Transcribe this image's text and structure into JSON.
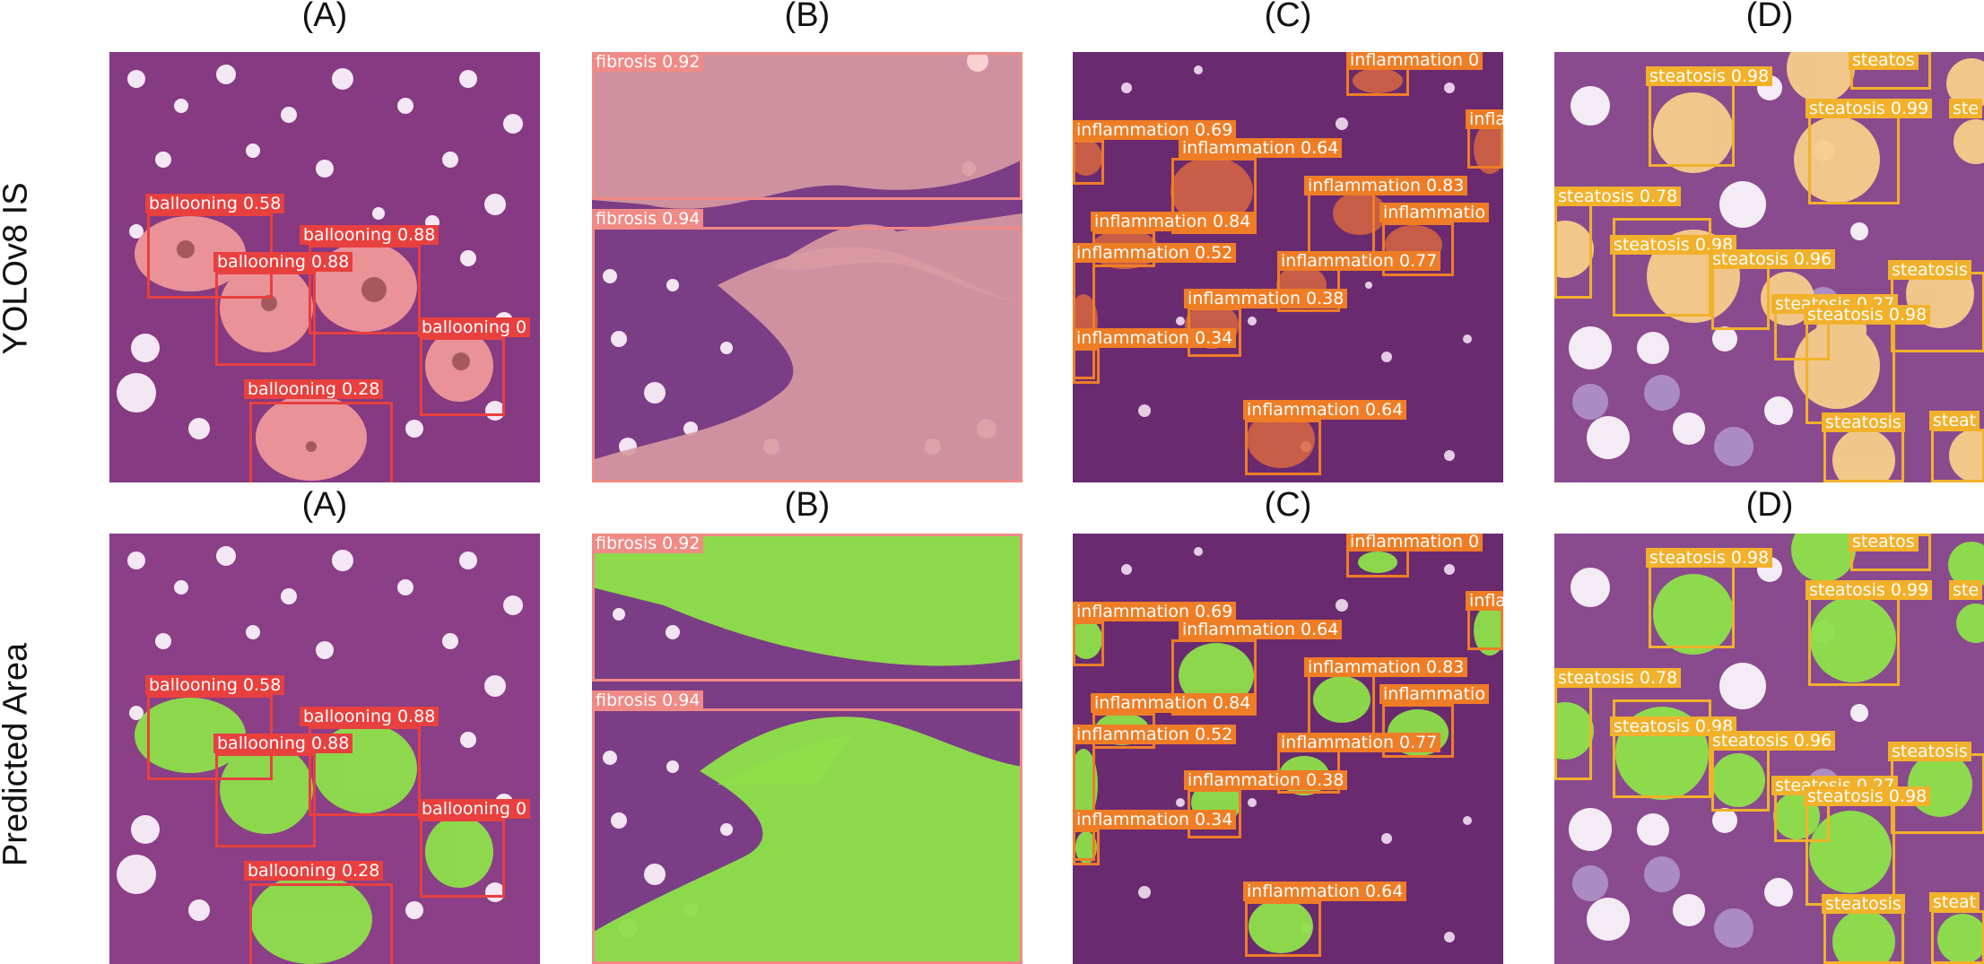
{
  "colors": {
    "tissue": "#8a3f86",
    "tissue_dark": "#5e2563",
    "tissue_fibrosis": "#c98f96",
    "ballooning": "#e8403f",
    "fibrosis": "#f08a86",
    "inflammation": "#ef7d26",
    "steatosis": "#f2b12b",
    "predicted_fill": "#8ee04a"
  },
  "column_titles": [
    {
      "key": "A",
      "label": "(A)"
    },
    {
      "key": "B",
      "label": "(B)"
    },
    {
      "key": "C",
      "label": "(C)"
    },
    {
      "key": "D",
      "label": "(D)"
    }
  ],
  "row_titles": [
    {
      "key": "top",
      "label": "YOLOv8 IS"
    },
    {
      "key": "bottom",
      "label": "Predicted Area"
    }
  ],
  "panels": {
    "A": {
      "detections": [
        {
          "label": "ballooning 0.58"
        },
        {
          "label": "ballooning 0.88"
        },
        {
          "label": "ballooning 0.88"
        },
        {
          "label": "ballooning 0"
        },
        {
          "label": "ballooning 0.28"
        }
      ]
    },
    "B": {
      "detections": [
        {
          "label": "fibrosis 0.92"
        },
        {
          "label": "fibrosis 0.94"
        }
      ]
    },
    "C": {
      "detections": [
        {
          "label": "inflammation 0"
        },
        {
          "label": "infla"
        },
        {
          "label": "inflammation 0.69"
        },
        {
          "label": "inflammation 0.64"
        },
        {
          "label": "inflammation 0.83"
        },
        {
          "label": "inflammation 0.84"
        },
        {
          "label": "inflammatio"
        },
        {
          "label": "inflammation 0.52"
        },
        {
          "label": "inflammation 0.77"
        },
        {
          "label": "inflammation 0.38"
        },
        {
          "label": "inflammation 0.34"
        },
        {
          "label": "inflammation 0.64"
        }
      ]
    },
    "D": {
      "detections": [
        {
          "label": "steatos"
        },
        {
          "label": "steatosis 0.98"
        },
        {
          "label": "steatosis 0.99"
        },
        {
          "label": "ste"
        },
        {
          "label": "steatosis 0.78"
        },
        {
          "label": "steatosis 0.98"
        },
        {
          "label": "steatosis 0.96"
        },
        {
          "label": "steatosis"
        },
        {
          "label": "steatosis 0.27"
        },
        {
          "label": "steatosis 0.98"
        },
        {
          "label": "steatosis"
        },
        {
          "label": "steat"
        }
      ]
    }
  }
}
